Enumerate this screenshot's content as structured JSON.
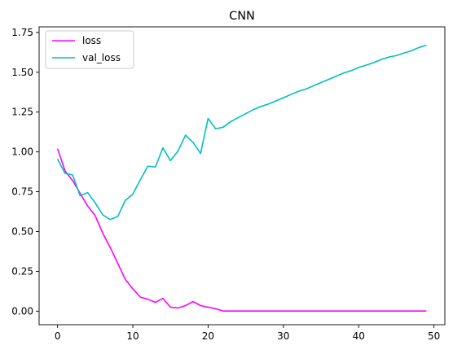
{
  "chart_data": {
    "type": "line",
    "title": "CNN",
    "xlabel": "",
    "ylabel": "",
    "xlim": [
      -2.45,
      51.45
    ],
    "ylim": [
      -0.085,
      1.785
    ],
    "x_ticks": [
      0,
      10,
      20,
      30,
      40,
      50
    ],
    "y_ticks": [
      0.0,
      0.25,
      0.5,
      0.75,
      1.0,
      1.25,
      1.5,
      1.75
    ],
    "x_tick_labels": [
      "0",
      "10",
      "20",
      "30",
      "40",
      "50"
    ],
    "y_tick_labels": [
      "0.00",
      "0.25",
      "0.50",
      "0.75",
      "1.00",
      "1.25",
      "1.50",
      "1.75"
    ],
    "grid": false,
    "legend_position": "top-left",
    "x": [
      0,
      1,
      2,
      3,
      4,
      5,
      6,
      7,
      8,
      9,
      10,
      11,
      12,
      13,
      14,
      15,
      16,
      17,
      18,
      19,
      20,
      21,
      22,
      23,
      24,
      25,
      26,
      27,
      28,
      29,
      30,
      31,
      32,
      33,
      34,
      35,
      36,
      37,
      38,
      39,
      40,
      41,
      42,
      43,
      44,
      45,
      46,
      47,
      48,
      49
    ],
    "series": [
      {
        "name": "loss",
        "color": "#ff00ff",
        "values": [
          1.02,
          0.88,
          0.82,
          0.74,
          0.66,
          0.6,
          0.49,
          0.4,
          0.3,
          0.2,
          0.14,
          0.088,
          0.075,
          0.055,
          0.08,
          0.025,
          0.02,
          0.035,
          0.06,
          0.035,
          0.025,
          0.015,
          0.001,
          0.001,
          0.001,
          0.001,
          0.001,
          0.001,
          0.001,
          0.001,
          0.001,
          0.001,
          0.001,
          0.001,
          0.001,
          0.001,
          0.001,
          0.001,
          0.001,
          0.001,
          0.001,
          0.001,
          0.001,
          0.001,
          0.001,
          0.001,
          0.001,
          0.001,
          0.001,
          0.001
        ]
      },
      {
        "name": "val_loss",
        "color": "#00bfbf",
        "values": [
          0.955,
          0.865,
          0.855,
          0.725,
          0.745,
          0.68,
          0.605,
          0.575,
          0.595,
          0.695,
          0.735,
          0.825,
          0.91,
          0.905,
          1.025,
          0.945,
          1.005,
          1.105,
          1.06,
          0.99,
          1.21,
          1.145,
          1.155,
          1.19,
          1.215,
          1.24,
          1.265,
          1.285,
          1.3,
          1.32,
          1.34,
          1.36,
          1.38,
          1.395,
          1.415,
          1.435,
          1.455,
          1.475,
          1.495,
          1.51,
          1.53,
          1.545,
          1.56,
          1.58,
          1.595,
          1.605,
          1.62,
          1.635,
          1.655,
          1.67
        ]
      }
    ]
  }
}
